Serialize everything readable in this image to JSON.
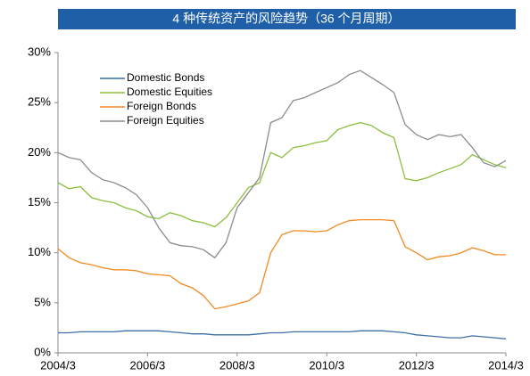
{
  "chart_data": {
    "type": "line",
    "title": "4 种传统资产的风险趋势（36 个月周期）",
    "categories": [
      "2004/3",
      "2004/6",
      "2004/9",
      "2004/12",
      "2005/3",
      "2005/6",
      "2005/9",
      "2005/12",
      "2006/3",
      "2006/6",
      "2006/9",
      "2006/12",
      "2007/3",
      "2007/6",
      "2007/9",
      "2007/12",
      "2008/3",
      "2008/6",
      "2008/9",
      "2008/12",
      "2009/3",
      "2009/6",
      "2009/9",
      "2009/12",
      "2010/3",
      "2010/6",
      "2010/9",
      "2010/12",
      "2011/3",
      "2011/6",
      "2011/9",
      "2011/12",
      "2012/3",
      "2012/6",
      "2012/9",
      "2012/12",
      "2013/3",
      "2013/6",
      "2013/9",
      "2013/12",
      "2014/3"
    ],
    "xticks": [
      "2004/3",
      "2006/3",
      "2008/3",
      "2010/3",
      "2012/3",
      "2014/3"
    ],
    "series": [
      {
        "name": "Domestic Bonds",
        "color": "#3c6fa6",
        "values": [
          2.0,
          2.0,
          2.1,
          2.1,
          2.1,
          2.1,
          2.2,
          2.2,
          2.2,
          2.2,
          2.1,
          2.0,
          1.9,
          1.9,
          1.8,
          1.8,
          1.8,
          1.8,
          1.9,
          2.0,
          2.0,
          2.1,
          2.1,
          2.1,
          2.1,
          2.1,
          2.1,
          2.2,
          2.2,
          2.2,
          2.1,
          2.0,
          1.8,
          1.7,
          1.6,
          1.5,
          1.5,
          1.7,
          1.6,
          1.5,
          1.4
        ]
      },
      {
        "name": "Domestic Equities",
        "color": "#8cbf3f",
        "values": [
          17.0,
          16.4,
          16.6,
          15.5,
          15.2,
          15.0,
          14.5,
          14.2,
          13.6,
          13.4,
          14.0,
          13.7,
          13.2,
          13.0,
          12.6,
          13.5,
          15.0,
          16.5,
          17.0,
          20.0,
          19.5,
          20.5,
          20.7,
          21.0,
          21.2,
          22.3,
          22.7,
          23.0,
          22.7,
          22.0,
          21.5,
          17.4,
          17.2,
          17.5,
          18.0,
          18.4,
          18.8,
          19.8,
          19.3,
          18.8,
          18.5
        ]
      },
      {
        "name": "Foreign Bonds",
        "color": "#f08a24",
        "values": [
          10.4,
          9.5,
          9.0,
          8.8,
          8.5,
          8.3,
          8.3,
          8.2,
          7.9,
          7.8,
          7.7,
          6.9,
          6.5,
          5.7,
          4.4,
          4.6,
          4.9,
          5.2,
          6.0,
          10.0,
          11.8,
          12.2,
          12.2,
          12.1,
          12.2,
          12.8,
          13.2,
          13.3,
          13.3,
          13.3,
          13.2,
          10.6,
          10.0,
          9.3,
          9.6,
          9.7,
          10.0,
          10.5,
          10.2,
          9.8,
          9.8
        ]
      },
      {
        "name": "Foreign Equities",
        "color": "#8c8c8c",
        "values": [
          20.0,
          19.5,
          19.3,
          18.0,
          17.3,
          17.0,
          16.5,
          15.8,
          14.5,
          12.5,
          11.0,
          10.7,
          10.6,
          10.3,
          9.5,
          11.0,
          14.5,
          16.0,
          17.5,
          23.0,
          23.5,
          25.2,
          25.5,
          26.0,
          26.5,
          27.0,
          27.8,
          28.2,
          27.5,
          26.8,
          26.0,
          22.8,
          21.8,
          21.3,
          21.8,
          21.6,
          21.8,
          20.5,
          19.0,
          18.6,
          19.2
        ]
      }
    ],
    "ylim": [
      0,
      30
    ],
    "yticks": [
      {
        "value": 0,
        "label": "0%"
      },
      {
        "value": 5,
        "label": "5%"
      },
      {
        "value": 10,
        "label": "10%"
      },
      {
        "value": 15,
        "label": "15%"
      },
      {
        "value": 20,
        "label": "20%"
      },
      {
        "value": 25,
        "label": "25%"
      },
      {
        "value": 30,
        "label": "30%"
      }
    ],
    "legend": "upper left"
  }
}
